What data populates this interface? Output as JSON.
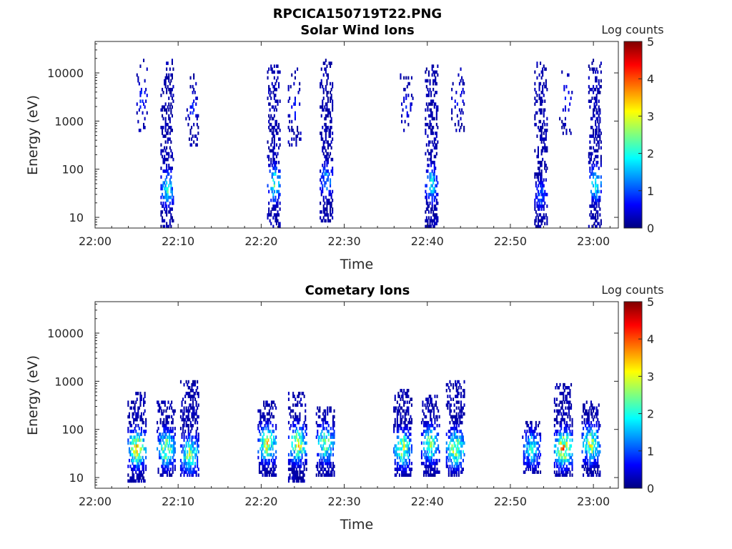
{
  "figure_title": "RPCICA150719T22.PNG",
  "colormap": [
    "#00007f",
    "#0000ff",
    "#007fff",
    "#00ffff",
    "#7fff7f",
    "#ffff00",
    "#ff7f00",
    "#ff0000",
    "#7f0000"
  ],
  "chart_data": [
    {
      "type": "heatmap",
      "title": "Solar Wind Ions",
      "xlabel": "Time",
      "ylabel": "Energy (eV)",
      "x_scale": "time",
      "y_scale": "log",
      "xlim": [
        "22:00",
        "23:03"
      ],
      "ylim": [
        6,
        45000
      ],
      "xticks": [
        "22:00",
        "22:10",
        "22:20",
        "22:30",
        "22:40",
        "22:50",
        "23:00"
      ],
      "yticks": [
        10,
        100,
        1000,
        10000
      ],
      "ytick_labels": [
        "10",
        "100",
        "1000",
        "10000"
      ],
      "colorbar": {
        "label": "Log counts",
        "range": [
          0,
          5
        ],
        "ticks": [
          "0",
          "1",
          "2",
          "3",
          "4",
          "5"
        ]
      },
      "bursts": [
        {
          "t": "22:05:30",
          "emin": 500,
          "emax": 20000,
          "peak": 1.0,
          "peak_e": 3000,
          "density": 0.25
        },
        {
          "t": "22:08:40",
          "emin": 6,
          "emax": 20000,
          "peak": 2.2,
          "peak_e": 40,
          "density": 0.6
        },
        {
          "t": "22:11:40",
          "emin": 300,
          "emax": 10000,
          "peak": 0.9,
          "peak_e": 2000,
          "density": 0.25
        },
        {
          "t": "22:21:30",
          "emin": 6,
          "emax": 15000,
          "peak": 2.4,
          "peak_e": 50,
          "density": 0.6
        },
        {
          "t": "22:24:00",
          "emin": 300,
          "emax": 12000,
          "peak": 0.8,
          "peak_e": 2000,
          "density": 0.25
        },
        {
          "t": "22:27:50",
          "emin": 8,
          "emax": 20000,
          "peak": 1.6,
          "peak_e": 60,
          "density": 0.6
        },
        {
          "t": "22:37:30",
          "emin": 500,
          "emax": 10000,
          "peak": 0.8,
          "peak_e": 2000,
          "density": 0.25
        },
        {
          "t": "22:40:30",
          "emin": 6,
          "emax": 15000,
          "peak": 2.0,
          "peak_e": 50,
          "density": 0.6
        },
        {
          "t": "22:43:40",
          "emin": 600,
          "emax": 15000,
          "peak": 0.8,
          "peak_e": 3000,
          "density": 0.25
        },
        {
          "t": "22:53:40",
          "emin": 6,
          "emax": 20000,
          "peak": 1.2,
          "peak_e": 30,
          "density": 0.55
        },
        {
          "t": "22:56:40",
          "emin": 500,
          "emax": 15000,
          "peak": 0.8,
          "peak_e": 3000,
          "density": 0.25
        },
        {
          "t": "23:00:10",
          "emin": 6,
          "emax": 20000,
          "peak": 2.3,
          "peak_e": 50,
          "density": 0.6
        }
      ]
    },
    {
      "type": "heatmap",
      "title": "Cometary Ions",
      "xlabel": "Time",
      "ylabel": "Energy (eV)",
      "x_scale": "time",
      "y_scale": "log",
      "xlim": [
        "22:00",
        "23:03"
      ],
      "ylim": [
        6,
        45000
      ],
      "xticks": [
        "22:00",
        "22:10",
        "22:20",
        "22:30",
        "22:40",
        "22:50",
        "23:00"
      ],
      "yticks": [
        10,
        100,
        1000,
        10000
      ],
      "ytick_labels": [
        "10",
        "100",
        "1000",
        "10000"
      ],
      "colorbar": {
        "label": "Log counts",
        "range": [
          0,
          5
        ],
        "ticks": [
          "0",
          "1",
          "2",
          "3",
          "4",
          "5"
        ]
      },
      "bursts": [
        {
          "t": "22:05:00",
          "emin": 8,
          "emax": 600,
          "peak": 3.6,
          "peak_e": 40,
          "density": 0.8
        },
        {
          "t": "22:08:30",
          "emin": 10,
          "emax": 400,
          "peak": 3.0,
          "peak_e": 40,
          "density": 0.8
        },
        {
          "t": "22:11:20",
          "emin": 10,
          "emax": 1000,
          "peak": 2.9,
          "peak_e": 30,
          "density": 0.8
        },
        {
          "t": "22:20:40",
          "emin": 10,
          "emax": 400,
          "peak": 3.2,
          "peak_e": 50,
          "density": 0.8
        },
        {
          "t": "22:24:20",
          "emin": 8,
          "emax": 600,
          "peak": 3.4,
          "peak_e": 50,
          "density": 0.8
        },
        {
          "t": "22:27:40",
          "emin": 10,
          "emax": 300,
          "peak": 2.8,
          "peak_e": 50,
          "density": 0.8
        },
        {
          "t": "22:37:00",
          "emin": 10,
          "emax": 700,
          "peak": 3.0,
          "peak_e": 40,
          "density": 0.8
        },
        {
          "t": "22:40:20",
          "emin": 10,
          "emax": 500,
          "peak": 2.9,
          "peak_e": 50,
          "density": 0.8
        },
        {
          "t": "22:43:20",
          "emin": 10,
          "emax": 1000,
          "peak": 3.3,
          "peak_e": 40,
          "density": 0.8
        },
        {
          "t": "22:52:30",
          "emin": 12,
          "emax": 150,
          "peak": 2.2,
          "peak_e": 40,
          "density": 0.8
        },
        {
          "t": "22:56:20",
          "emin": 10,
          "emax": 900,
          "peak": 3.8,
          "peak_e": 40,
          "density": 0.8
        },
        {
          "t": "22:59:40",
          "emin": 10,
          "emax": 400,
          "peak": 3.2,
          "peak_e": 50,
          "density": 0.8
        }
      ]
    }
  ]
}
